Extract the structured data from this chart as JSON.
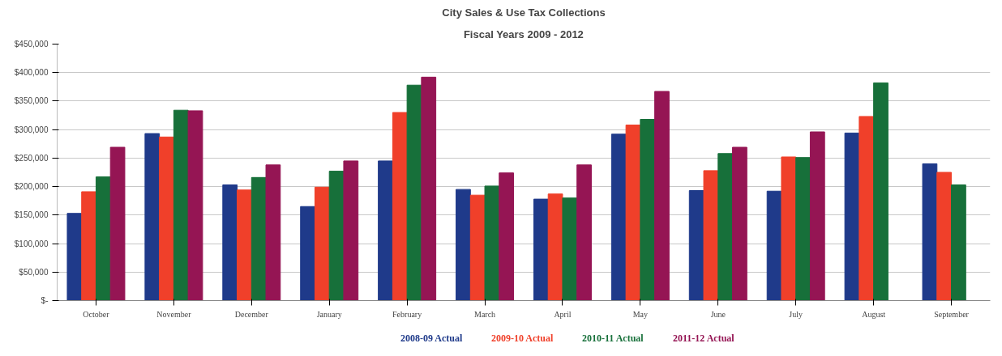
{
  "chart_data": {
    "type": "bar",
    "title": "City Sales & Use Tax Collections",
    "subtitle": "Fiscal Years 2009 - 2012",
    "categories": [
      "October",
      "November",
      "December",
      "January",
      "February",
      "March",
      "April",
      "May",
      "June",
      "July",
      "August",
      "September"
    ],
    "series": [
      {
        "name": "2008-09 Actual",
        "color": "#1f3a8a",
        "values": [
          153000,
          293000,
          203000,
          165000,
          245000,
          195000,
          178000,
          292000,
          193000,
          192000,
          294000,
          240000
        ]
      },
      {
        "name": "2009-10 Actual",
        "color": "#f0402a",
        "values": [
          191000,
          287000,
          194000,
          199000,
          330000,
          185000,
          187000,
          308000,
          228000,
          252000,
          323000,
          225000
        ]
      },
      {
        "name": "2010-11 Actual",
        "color": "#17703a",
        "values": [
          217000,
          334000,
          216000,
          227000,
          378000,
          201000,
          180000,
          318000,
          258000,
          251000,
          382000,
          203000
        ]
      },
      {
        "name": "2011-12 Actual",
        "color": "#951554",
        "values": [
          269000,
          333000,
          238000,
          245000,
          392000,
          224000,
          238000,
          367000,
          269000,
          296000,
          null,
          null
        ]
      }
    ],
    "ylim": [
      0,
      450000
    ],
    "yticks": [
      {
        "value": 0,
        "label": "$-"
      },
      {
        "value": 50000,
        "label": "$50,000"
      },
      {
        "value": 100000,
        "label": "$100,000"
      },
      {
        "value": 150000,
        "label": "$150,000"
      },
      {
        "value": 200000,
        "label": "$200,000"
      },
      {
        "value": 250000,
        "label": "$250,000"
      },
      {
        "value": 300000,
        "label": "$300,000"
      },
      {
        "value": 350000,
        "label": "$350,000"
      },
      {
        "value": 400000,
        "label": "$400,000"
      },
      {
        "value": 450000,
        "label": "$450,000"
      }
    ],
    "grid": "y",
    "legend": "bottom"
  }
}
